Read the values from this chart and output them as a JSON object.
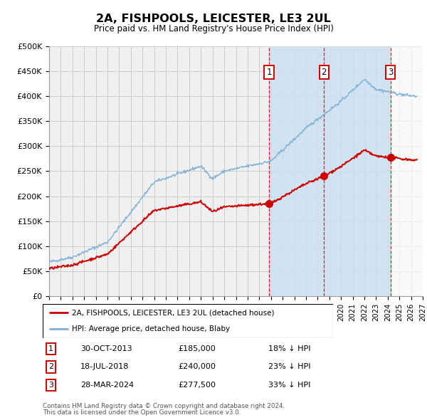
{
  "title": "2A, FISHPOOLS, LEICESTER, LE3 2UL",
  "subtitle": "Price paid vs. HM Land Registry's House Price Index (HPI)",
  "ylabel_ticks": [
    "£0",
    "£50K",
    "£100K",
    "£150K",
    "£200K",
    "£250K",
    "£300K",
    "£350K",
    "£400K",
    "£450K",
    "£500K"
  ],
  "ytick_values": [
    0,
    50000,
    100000,
    150000,
    200000,
    250000,
    300000,
    350000,
    400000,
    450000,
    500000
  ],
  "xmin": 1995,
  "xmax": 2027,
  "ymin": 0,
  "ymax": 500000,
  "transactions": [
    {
      "label": "1",
      "date": "30-OCT-2013",
      "price": 185000,
      "year": 2013.83,
      "pct": "18%",
      "dir": "↓"
    },
    {
      "label": "2",
      "date": "18-JUL-2018",
      "price": 240000,
      "year": 2018.54,
      "pct": "23%",
      "dir": "↓"
    },
    {
      "label": "3",
      "date": "28-MAR-2024",
      "price": 277500,
      "year": 2024.24,
      "pct": "33%",
      "dir": "↓"
    }
  ],
  "legend_line1": "2A, FISHPOOLS, LEICESTER, LE3 2UL (detached house)",
  "legend_line2": "HPI: Average price, detached house, Blaby",
  "footer1": "Contains HM Land Registry data © Crown copyright and database right 2024.",
  "footer2": "This data is licensed under the Open Government Licence v3.0.",
  "line_color_red": "#cc0000",
  "line_color_blue": "#7aaed6",
  "shade_color": "#cce0f0",
  "grid_color": "#cccccc",
  "background_color": "#f0f0f0"
}
